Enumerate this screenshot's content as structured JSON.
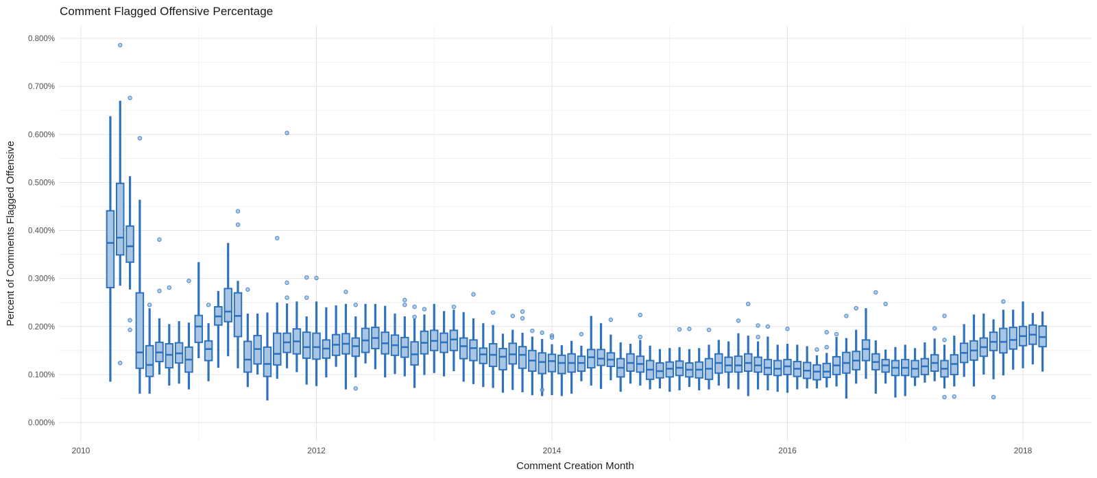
{
  "chart_data": {
    "type": "boxplot",
    "title": "Comment Flagged Offensive Percentage",
    "xlabel": "Comment Creation Month",
    "ylabel": "Percent of Comments Flagged Offensive",
    "legend": "none",
    "grid": "major and minor, light gray on white",
    "x_axis": {
      "major_ticks": [
        {
          "label": "2010",
          "year": 2010
        },
        {
          "label": "2012",
          "year": 2012
        },
        {
          "label": "2014",
          "year": 2014
        },
        {
          "label": "2016",
          "year": 2016
        },
        {
          "label": "2018",
          "year": 2018
        }
      ],
      "minor_years": [
        2011,
        2013,
        2015,
        2017
      ]
    },
    "y_axis": {
      "unit": "%",
      "min": 0.0,
      "max": 0.8,
      "ticks": [
        {
          "label": "0.000%",
          "value": 0.0
        },
        {
          "label": "0.100%",
          "value": 0.1
        },
        {
          "label": "0.200%",
          "value": 0.2
        },
        {
          "label": "0.300%",
          "value": 0.3
        },
        {
          "label": "0.400%",
          "value": 0.4
        },
        {
          "label": "0.500%",
          "value": 0.5
        },
        {
          "label": "0.600%",
          "value": 0.6
        },
        {
          "label": "0.700%",
          "value": 0.7
        },
        {
          "label": "0.800%",
          "value": 0.8
        }
      ],
      "minor_values": [
        0.05,
        0.15,
        0.25,
        0.35,
        0.45,
        0.55,
        0.65,
        0.75
      ]
    },
    "colors": {
      "box_stroke": "#2e71bd",
      "box_fill": "#a8c6e4",
      "median_stroke": "#2e71bd",
      "outlier_fill": "#85b0dd",
      "outlier_stroke": "#3f7fc4",
      "grid_major": "#e3e3e3",
      "grid_minor": "#f1f1f1",
      "tick_text": "#4d4d4d",
      "title_text": "#161616",
      "axis_title_text": "#1f1f1f",
      "background": "#ffffff"
    },
    "box_columns": [
      "month",
      "whisker_low",
      "q1",
      "median",
      "q3",
      "whisker_high",
      "outliers"
    ],
    "boxes": [
      [
        "2010-04",
        0.085,
        0.281,
        0.374,
        0.441,
        0.638,
        []
      ],
      [
        "2010-05",
        0.285,
        0.349,
        0.385,
        0.498,
        0.67,
        [
          0.786,
          0.124
        ]
      ],
      [
        "2010-06",
        0.277,
        0.334,
        0.367,
        0.409,
        0.513,
        [
          0.676,
          0.213,
          0.193
        ]
      ],
      [
        "2010-07",
        0.06,
        0.113,
        0.146,
        0.27,
        0.464,
        [
          0.592
        ]
      ],
      [
        "2010-08",
        0.06,
        0.096,
        0.12,
        0.16,
        0.238,
        [
          0.245
        ]
      ],
      [
        "2010-09",
        0.1,
        0.127,
        0.146,
        0.167,
        0.217,
        [
          0.381,
          0.274
        ]
      ],
      [
        "2010-10",
        0.077,
        0.114,
        0.141,
        0.164,
        0.205,
        [
          0.281
        ]
      ],
      [
        "2010-11",
        0.081,
        0.124,
        0.144,
        0.166,
        0.211,
        []
      ],
      [
        "2010-12",
        0.069,
        0.105,
        0.131,
        0.157,
        0.208,
        [
          0.295
        ]
      ],
      [
        "2011-01",
        0.134,
        0.167,
        0.2,
        0.223,
        0.334,
        []
      ],
      [
        "2011-02",
        0.086,
        0.129,
        0.153,
        0.17,
        0.207,
        [
          0.245
        ]
      ],
      [
        "2011-03",
        0.114,
        0.203,
        0.221,
        0.241,
        0.274,
        []
      ],
      [
        "2011-04",
        0.138,
        0.21,
        0.231,
        0.279,
        0.374,
        []
      ],
      [
        "2011-05",
        0.113,
        0.179,
        0.222,
        0.27,
        0.295,
        [
          0.44,
          0.412
        ]
      ],
      [
        "2011-06",
        0.074,
        0.105,
        0.131,
        0.169,
        0.227,
        [
          0.277
        ]
      ],
      [
        "2011-07",
        0.1,
        0.122,
        0.153,
        0.181,
        0.227,
        []
      ],
      [
        "2011-08",
        0.046,
        0.096,
        0.122,
        0.157,
        0.229,
        []
      ],
      [
        "2011-09",
        0.091,
        0.12,
        0.143,
        0.186,
        0.25,
        [
          0.384
        ]
      ],
      [
        "2011-10",
        0.113,
        0.146,
        0.167,
        0.186,
        0.248,
        [
          0.603,
          0.291,
          0.26
        ]
      ],
      [
        "2011-11",
        0.105,
        0.143,
        0.169,
        0.195,
        0.252,
        []
      ],
      [
        "2011-12",
        0.079,
        0.134,
        0.157,
        0.188,
        0.221,
        [
          0.302,
          0.26
        ]
      ],
      [
        "2012-01",
        0.076,
        0.132,
        0.157,
        0.186,
        0.252,
        [
          0.301
        ]
      ],
      [
        "2012-02",
        0.094,
        0.134,
        0.154,
        0.172,
        0.24,
        []
      ],
      [
        "2012-03",
        0.116,
        0.14,
        0.162,
        0.183,
        0.244,
        []
      ],
      [
        "2012-04",
        0.069,
        0.143,
        0.164,
        0.185,
        0.247,
        [
          0.272
        ]
      ],
      [
        "2012-05",
        0.094,
        0.138,
        0.159,
        0.176,
        0.221,
        [
          0.245,
          0.071
        ]
      ],
      [
        "2012-06",
        0.123,
        0.146,
        0.171,
        0.196,
        0.247,
        []
      ],
      [
        "2012-07",
        0.111,
        0.154,
        0.176,
        0.198,
        0.247,
        []
      ],
      [
        "2012-08",
        0.094,
        0.143,
        0.165,
        0.188,
        0.243,
        []
      ],
      [
        "2012-09",
        0.101,
        0.14,
        0.161,
        0.182,
        0.227,
        []
      ],
      [
        "2012-10",
        0.096,
        0.136,
        0.157,
        0.177,
        0.221,
        [
          0.255,
          0.245
        ]
      ],
      [
        "2012-11",
        0.072,
        0.12,
        0.142,
        0.168,
        0.216,
        [
          0.241,
          0.22
        ]
      ],
      [
        "2012-12",
        0.099,
        0.143,
        0.166,
        0.19,
        0.225,
        [
          0.236
        ]
      ],
      [
        "2013-01",
        0.103,
        0.15,
        0.17,
        0.192,
        0.247,
        []
      ],
      [
        "2013-02",
        0.096,
        0.146,
        0.167,
        0.186,
        0.232,
        []
      ],
      [
        "2013-03",
        0.107,
        0.15,
        0.173,
        0.192,
        0.235,
        [
          0.241
        ]
      ],
      [
        "2013-04",
        0.085,
        0.133,
        0.159,
        0.176,
        0.23,
        []
      ],
      [
        "2013-05",
        0.08,
        0.129,
        0.155,
        0.172,
        0.217,
        [
          0.267
        ]
      ],
      [
        "2013-06",
        0.074,
        0.123,
        0.142,
        0.155,
        0.207,
        []
      ],
      [
        "2013-07",
        0.072,
        0.117,
        0.141,
        0.164,
        0.203,
        [
          0.229
        ]
      ],
      [
        "2013-08",
        0.062,
        0.11,
        0.137,
        0.154,
        0.185,
        []
      ],
      [
        "2013-09",
        0.068,
        0.122,
        0.142,
        0.165,
        0.193,
        [
          0.222
        ]
      ],
      [
        "2013-10",
        0.063,
        0.113,
        0.141,
        0.158,
        0.187,
        [
          0.231,
          0.217
        ]
      ],
      [
        "2013-11",
        0.057,
        0.107,
        0.129,
        0.15,
        0.179,
        [
          0.191
        ]
      ],
      [
        "2013-12",
        0.055,
        0.102,
        0.126,
        0.145,
        0.174,
        [
          0.187,
          0.068
        ]
      ],
      [
        "2014-01",
        0.057,
        0.106,
        0.128,
        0.142,
        0.163,
        [
          0.181,
          0.177
        ]
      ],
      [
        "2014-02",
        0.055,
        0.102,
        0.124,
        0.14,
        0.161,
        []
      ],
      [
        "2014-03",
        0.06,
        0.105,
        0.124,
        0.143,
        0.17,
        []
      ],
      [
        "2014-04",
        0.086,
        0.107,
        0.124,
        0.138,
        0.16,
        [
          0.184
        ]
      ],
      [
        "2014-05",
        0.077,
        0.114,
        0.136,
        0.152,
        0.222,
        []
      ],
      [
        "2014-06",
        0.07,
        0.119,
        0.133,
        0.152,
        0.207,
        []
      ],
      [
        "2014-07",
        0.088,
        0.117,
        0.131,
        0.145,
        0.183,
        [
          0.214
        ]
      ],
      [
        "2014-08",
        0.064,
        0.095,
        0.114,
        0.133,
        0.167,
        []
      ],
      [
        "2014-09",
        0.081,
        0.107,
        0.124,
        0.143,
        0.164,
        []
      ],
      [
        "2014-10",
        0.077,
        0.105,
        0.122,
        0.138,
        0.172,
        [
          0.224,
          0.178
        ]
      ],
      [
        "2014-11",
        0.069,
        0.09,
        0.11,
        0.129,
        0.16,
        []
      ],
      [
        "2014-12",
        0.071,
        0.093,
        0.107,
        0.124,
        0.153,
        []
      ],
      [
        "2015-01",
        0.064,
        0.095,
        0.112,
        0.126,
        0.155,
        []
      ],
      [
        "2015-02",
        0.067,
        0.098,
        0.114,
        0.128,
        0.157,
        [
          0.194
        ]
      ],
      [
        "2015-03",
        0.074,
        0.095,
        0.11,
        0.124,
        0.153,
        [
          0.195
        ]
      ],
      [
        "2015-04",
        0.067,
        0.093,
        0.11,
        0.126,
        0.155,
        []
      ],
      [
        "2015-05",
        0.069,
        0.09,
        0.112,
        0.133,
        0.162,
        [
          0.193
        ]
      ],
      [
        "2015-06",
        0.077,
        0.103,
        0.124,
        0.143,
        0.172,
        []
      ],
      [
        "2015-07",
        0.071,
        0.105,
        0.119,
        0.136,
        0.169,
        []
      ],
      [
        "2015-08",
        0.069,
        0.105,
        0.119,
        0.138,
        0.186,
        [
          0.212
        ]
      ],
      [
        "2015-09",
        0.055,
        0.107,
        0.124,
        0.143,
        0.181,
        [
          0.247
        ]
      ],
      [
        "2015-10",
        0.069,
        0.105,
        0.119,
        0.136,
        0.169,
        [
          0.202,
          0.178
        ]
      ],
      [
        "2015-11",
        0.067,
        0.1,
        0.114,
        0.131,
        0.179,
        [
          0.2
        ]
      ],
      [
        "2015-12",
        0.064,
        0.098,
        0.112,
        0.129,
        0.162,
        []
      ],
      [
        "2016-01",
        0.062,
        0.1,
        0.117,
        0.131,
        0.164,
        [
          0.195
        ]
      ],
      [
        "2016-02",
        0.069,
        0.096,
        0.112,
        0.127,
        0.162,
        []
      ],
      [
        "2016-03",
        0.071,
        0.092,
        0.108,
        0.125,
        0.159,
        []
      ],
      [
        "2016-04",
        0.071,
        0.089,
        0.106,
        0.12,
        0.14,
        [
          0.152
        ]
      ],
      [
        "2016-05",
        0.073,
        0.094,
        0.106,
        0.123,
        0.145,
        [
          0.188,
          0.157
        ]
      ],
      [
        "2016-06",
        0.075,
        0.1,
        0.119,
        0.137,
        0.178,
        [
          0.184
        ]
      ],
      [
        "2016-07",
        0.05,
        0.103,
        0.124,
        0.146,
        0.176,
        [
          0.222
        ]
      ],
      [
        "2016-08",
        0.081,
        0.11,
        0.129,
        0.148,
        0.193,
        [
          0.238
        ]
      ],
      [
        "2016-09",
        0.091,
        0.129,
        0.153,
        0.172,
        0.238,
        []
      ],
      [
        "2016-10",
        0.06,
        0.11,
        0.126,
        0.143,
        0.171,
        [
          0.271
        ]
      ],
      [
        "2016-11",
        0.081,
        0.105,
        0.119,
        0.131,
        0.152,
        [
          0.247
        ]
      ],
      [
        "2016-12",
        0.052,
        0.098,
        0.114,
        0.129,
        0.157,
        []
      ],
      [
        "2017-01",
        0.055,
        0.098,
        0.114,
        0.131,
        0.162,
        []
      ],
      [
        "2017-02",
        0.076,
        0.095,
        0.112,
        0.129,
        0.155,
        []
      ],
      [
        "2017-03",
        0.083,
        0.1,
        0.117,
        0.133,
        0.167,
        []
      ],
      [
        "2017-04",
        0.086,
        0.107,
        0.124,
        0.141,
        0.175,
        [
          0.196
        ]
      ],
      [
        "2017-05",
        0.071,
        0.095,
        0.112,
        0.129,
        0.162,
        [
          0.222,
          0.172,
          0.053
        ]
      ],
      [
        "2017-06",
        0.075,
        0.1,
        0.122,
        0.141,
        0.181,
        [
          0.054
        ]
      ],
      [
        "2017-07",
        0.095,
        0.125,
        0.145,
        0.165,
        0.205,
        []
      ],
      [
        "2017-08",
        0.075,
        0.13,
        0.15,
        0.17,
        0.225,
        []
      ],
      [
        "2017-09",
        0.1,
        0.138,
        0.157,
        0.176,
        0.227,
        []
      ],
      [
        "2017-10",
        0.09,
        0.15,
        0.168,
        0.188,
        0.215,
        [
          0.053
        ]
      ],
      [
        "2017-11",
        0.098,
        0.145,
        0.168,
        0.196,
        0.235,
        [
          0.252
        ]
      ],
      [
        "2017-12",
        0.11,
        0.153,
        0.172,
        0.198,
        0.235,
        []
      ],
      [
        "2018-01",
        0.113,
        0.16,
        0.18,
        0.2,
        0.252,
        []
      ],
      [
        "2018-02",
        0.121,
        0.163,
        0.183,
        0.203,
        0.228,
        []
      ],
      [
        "2018-03",
        0.106,
        0.158,
        0.178,
        0.201,
        0.231,
        []
      ]
    ]
  }
}
